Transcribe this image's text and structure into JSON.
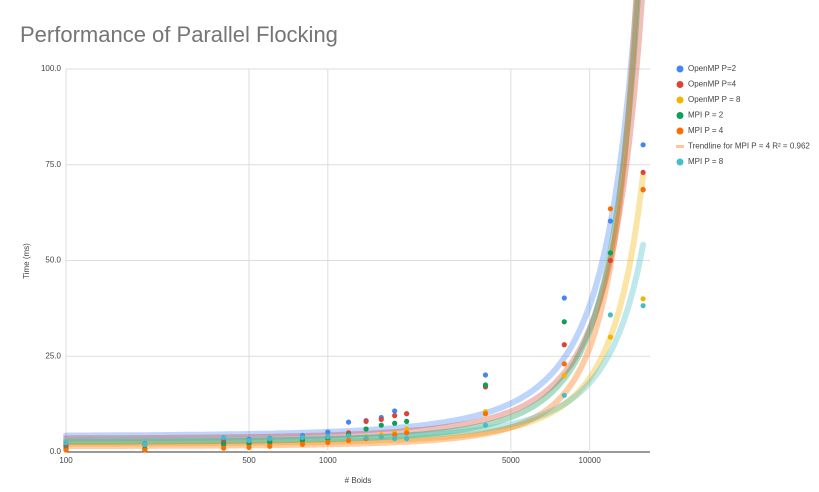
{
  "chart_data": {
    "type": "scatter",
    "title": "Performance of Parallel Flocking",
    "x_label": "# Boids",
    "y_label": "Time (ms)",
    "log_x": true,
    "grid": true,
    "legend": "right",
    "trendlines": true,
    "xlim": [
      100,
      17000
    ],
    "xticks": [
      100,
      500,
      1000,
      5000,
      10000
    ],
    "ylim": [
      0,
      100
    ],
    "yticks": [
      {
        "value": 0,
        "label": "0.0"
      },
      {
        "value": 25,
        "label": "25.0"
      },
      {
        "value": 50,
        "label": "50.0"
      },
      {
        "value": 75,
        "label": "75.0"
      },
      {
        "value": 100,
        "label": "100.0"
      }
    ],
    "x": [
      100,
      200,
      400,
      500,
      600,
      800,
      1000,
      1200,
      1400,
      1600,
      1800,
      2000,
      4000,
      8000,
      12000,
      16000
    ],
    "series": [
      {
        "name": "OpenMP P=2",
        "color": "#4285f4",
        "values": [
          2.0,
          2.2,
          3.0,
          3.3,
          3.6,
          4.3,
          5.2,
          7.8,
          8.2,
          9.0,
          10.7,
          10.0,
          20.1,
          40.2,
          60.3,
          80.2
        ]
      },
      {
        "name": "OpenMP P=4",
        "color": "#db4437",
        "values": [
          1.5,
          1.8,
          2.5,
          2.8,
          3.0,
          3.5,
          4.0,
          5.0,
          8.0,
          8.5,
          9.5,
          10.0,
          17.0,
          28.0,
          50.0,
          73.0
        ]
      },
      {
        "name": "OpenMP P = 8",
        "color": "#f4b400",
        "values": [
          0.8,
          1.0,
          1.5,
          1.8,
          2.0,
          2.5,
          3.0,
          3.5,
          4.0,
          4.5,
          5.0,
          6.0,
          10.5,
          20.0,
          30.0,
          40.0
        ]
      },
      {
        "name": "MPI P = 2",
        "color": "#0f9d58",
        "values": [
          0.8,
          0.8,
          2.0,
          2.2,
          2.5,
          3.0,
          3.5,
          4.5,
          6.0,
          7.0,
          7.5,
          8.0,
          17.5,
          34.0,
          52.0,
          68.5
        ]
      },
      {
        "name": "MPI P = 4",
        "color": "#ff6d00",
        "trendline_name": "Trendline for MPI P = 4 R² = 0.962",
        "values": [
          0.5,
          0.5,
          1.0,
          1.2,
          1.5,
          2.0,
          2.5,
          3.0,
          3.5,
          4.0,
          4.5,
          5.0,
          10.0,
          23.0,
          63.5,
          68.5
        ]
      },
      {
        "name": "MPI P = 8",
        "color": "#46bdc6",
        "values": [
          2.4,
          2.0,
          3.8,
          3.0,
          3.5,
          3.8,
          4.0,
          4.2,
          3.8,
          4.0,
          3.5,
          3.5,
          7.0,
          14.8,
          35.8,
          38.2
        ]
      }
    ]
  }
}
